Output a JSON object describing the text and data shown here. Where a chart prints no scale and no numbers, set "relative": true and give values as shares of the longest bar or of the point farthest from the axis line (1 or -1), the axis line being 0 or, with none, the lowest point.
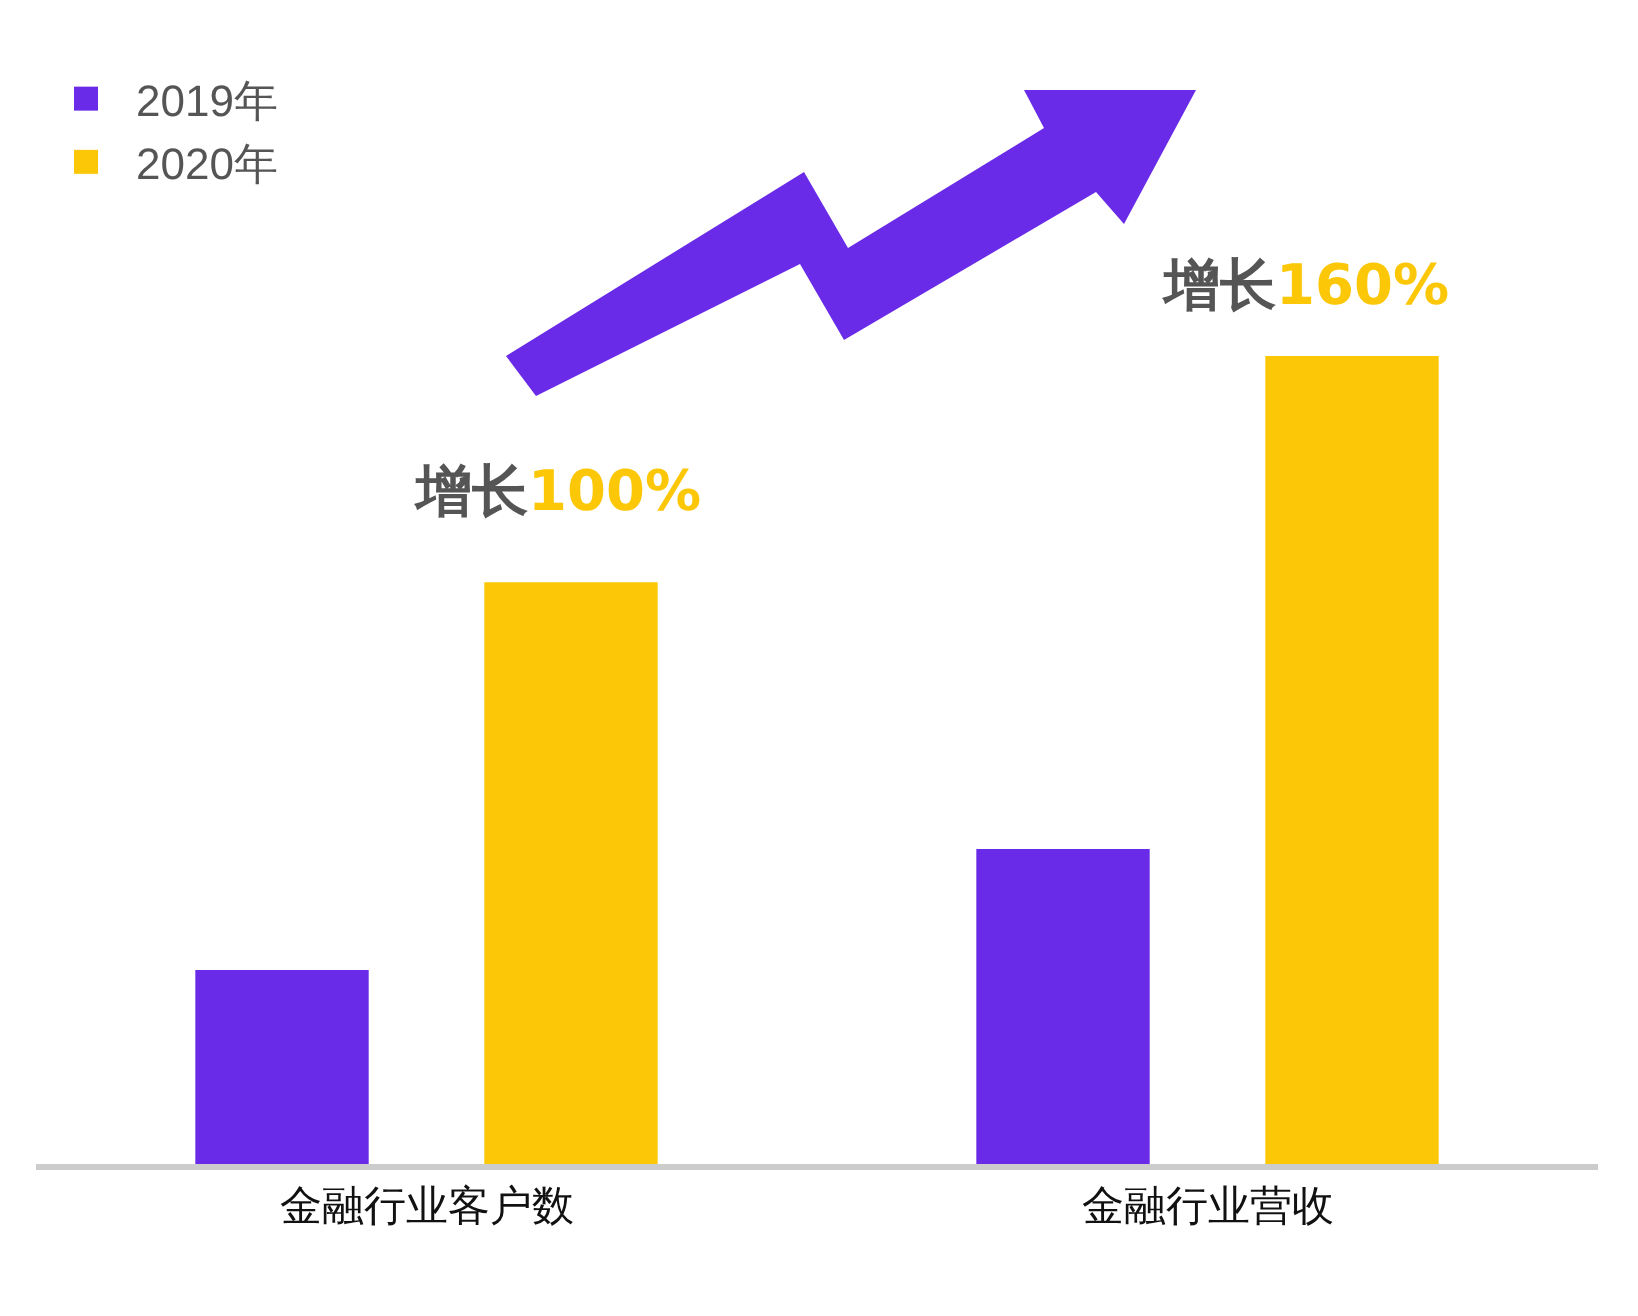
{
  "chart_data": {
    "type": "bar",
    "relative": true,
    "categories": [
      "金融行业客户数",
      "金融行业营收"
    ],
    "series": [
      {
        "name": "2019年",
        "color": "#6a2be8",
        "values": [
          0.24,
          0.39
        ]
      },
      {
        "name": "2020年",
        "color": "#fbc707",
        "values": [
          0.72,
          1
        ]
      }
    ],
    "annotations": [
      "增长100%",
      "增长160%"
    ],
    "legend": "top left",
    "grid": false
  }
}
